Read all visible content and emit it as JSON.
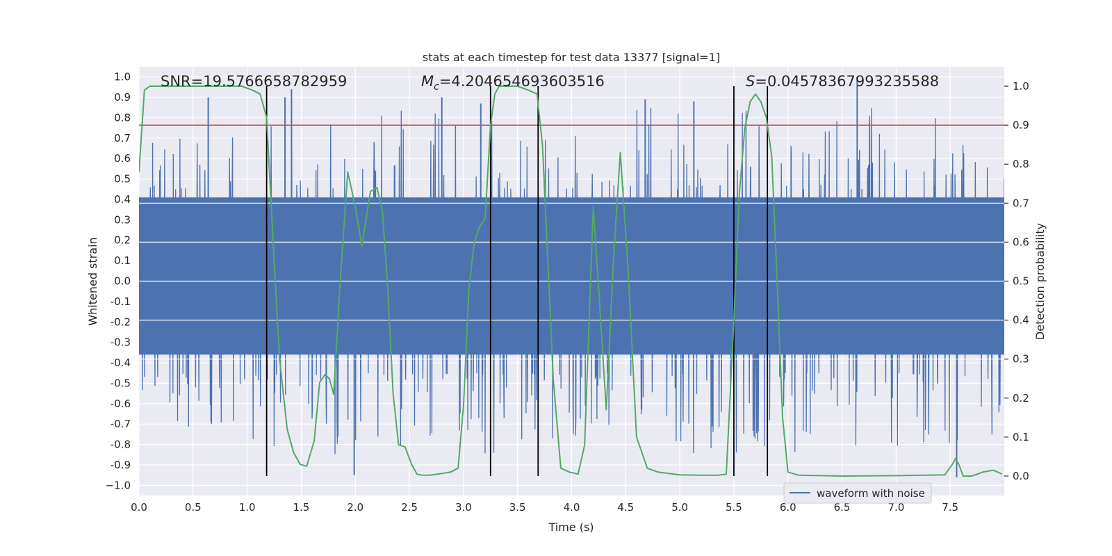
{
  "chart_data": {
    "type": "line",
    "title": "stats at each timestep for test data 13377 [signal=1]",
    "xlabel": "Time (s)",
    "ylabel_left": "Whitened strain",
    "ylabel_right": "Detection probability",
    "xlim": [
      0.0,
      8.0
    ],
    "ylim_left": [
      -1.05,
      1.05
    ],
    "ylim_right": [
      -0.05,
      1.05
    ],
    "x_ticks": [
      "0.0",
      "0.5",
      "1.0",
      "1.5",
      "2.0",
      "2.5",
      "3.0",
      "3.5",
      "4.0",
      "4.5",
      "5.0",
      "5.5",
      "6.0",
      "6.5",
      "7.0",
      "7.5"
    ],
    "y_ticks_left": [
      "1.0",
      "0.9",
      "0.8",
      "0.7",
      "0.6",
      "0.5",
      "0.4",
      "0.3",
      "0.2",
      "0.1",
      "0.0",
      "-0.1",
      "-0.2",
      "-0.3",
      "-0.4",
      "-0.5",
      "-0.6",
      "-0.7",
      "-0.8",
      "-0.9",
      "−1.0"
    ],
    "y_ticks_right": [
      "1.0",
      "0.9",
      "0.8",
      "0.7",
      "0.6",
      "0.5",
      "0.4",
      "0.3",
      "0.2",
      "0.1",
      "0.0"
    ],
    "annotations": {
      "snr": "SNR=19.5766658782959",
      "mc_symbol": "M",
      "mc_sub": "c",
      "mc_value": "=4.204654693603516",
      "s_symbol": "S",
      "s_value": "=0.04578367993235588"
    },
    "threshold": {
      "value": 0.9,
      "axis": "right",
      "color": "#c44e52"
    },
    "vertical_lines": [
      1.18,
      3.25,
      3.69,
      5.5,
      5.81
    ],
    "legend": {
      "label": "waveform with noise",
      "placement": "bottom-right"
    },
    "colors": {
      "waveform": "#4c72b0",
      "probability": "#55a868",
      "vlines": "#000000",
      "background": "#eaeaf2",
      "grid": "#ffffff"
    },
    "series": [
      {
        "name": "waveform with noise",
        "axis": "left",
        "kind": "noise",
        "core_range": [
          -0.36,
          0.41
        ],
        "peak_range": [
          -0.95,
          0.95
        ],
        "notable_spikes": [
          [
            0.64,
            0.9
          ],
          [
            1.35,
            0.9
          ],
          [
            1.41,
            0.94
          ],
          [
            1.99,
            -0.95
          ],
          [
            2.8,
            0.9
          ],
          [
            3.16,
            0.87
          ],
          [
            4.68,
            0.89
          ],
          [
            5.13,
            0.88
          ],
          [
            6.64,
            1.0
          ],
          [
            7.56,
            -0.96
          ]
        ]
      },
      {
        "name": "detection probability",
        "axis": "right",
        "x": [
          0.0,
          0.05,
          0.1,
          0.2,
          0.4,
          0.6,
          0.8,
          0.95,
          1.05,
          1.12,
          1.18,
          1.25,
          1.3,
          1.37,
          1.43,
          1.49,
          1.55,
          1.62,
          1.67,
          1.72,
          1.76,
          1.8,
          1.86,
          1.93,
          2.0,
          2.06,
          2.1,
          2.14,
          2.2,
          2.25,
          2.3,
          2.35,
          2.4,
          2.46,
          2.52,
          2.57,
          2.62,
          2.68,
          2.76,
          2.88,
          2.95,
          3.0,
          3.05,
          3.1,
          3.15,
          3.2,
          3.25,
          3.29,
          3.33,
          3.4,
          3.5,
          3.6,
          3.68,
          3.73,
          3.78,
          3.83,
          3.9,
          3.98,
          4.06,
          4.12,
          4.2,
          4.25,
          4.32,
          4.39,
          4.45,
          4.52,
          4.6,
          4.7,
          4.8,
          5.0,
          5.2,
          5.35,
          5.43,
          5.5,
          5.55,
          5.6,
          5.65,
          5.7,
          5.75,
          5.8,
          5.85,
          5.9,
          5.95,
          6.0,
          6.1,
          6.5,
          7.0,
          7.45,
          7.52,
          7.55,
          7.58,
          7.62,
          7.7,
          7.75,
          7.8,
          7.9,
          7.98
        ],
        "y": [
          0.78,
          0.99,
          1.0,
          1.0,
          1.0,
          1.0,
          1.0,
          1.0,
          0.99,
          0.98,
          0.92,
          0.55,
          0.3,
          0.12,
          0.06,
          0.03,
          0.025,
          0.09,
          0.24,
          0.26,
          0.25,
          0.21,
          0.5,
          0.78,
          0.69,
          0.59,
          0.66,
          0.73,
          0.74,
          0.68,
          0.48,
          0.21,
          0.08,
          0.075,
          0.03,
          0.005,
          0.002,
          0.002,
          0.005,
          0.01,
          0.02,
          0.18,
          0.48,
          0.6,
          0.64,
          0.66,
          0.9,
          0.98,
          1.0,
          1.0,
          1.0,
          0.99,
          0.98,
          0.85,
          0.55,
          0.25,
          0.02,
          0.01,
          0.005,
          0.08,
          0.69,
          0.48,
          0.17,
          0.57,
          0.83,
          0.54,
          0.1,
          0.02,
          0.01,
          0.003,
          0.002,
          0.002,
          0.005,
          0.4,
          0.72,
          0.89,
          0.96,
          0.98,
          0.96,
          0.92,
          0.82,
          0.5,
          0.15,
          0.01,
          0.002,
          0.0,
          0.001,
          0.003,
          0.03,
          0.045,
          0.03,
          0.0,
          0.0,
          0.005,
          0.01,
          0.015,
          0.005
        ]
      }
    ]
  }
}
